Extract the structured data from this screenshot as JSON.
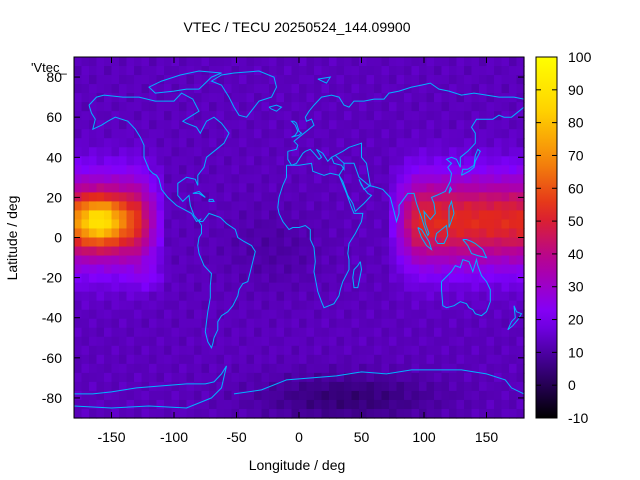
{
  "chart_data": {
    "type": "heatmap",
    "title": "VTEC / TECU 20250524_144.09900",
    "xlabel": "Longitude / deg",
    "ylabel": "Latitude / deg",
    "key_label": "'Vtec_",
    "xlim": [
      -180,
      180
    ],
    "ylim": [
      -90,
      90
    ],
    "x_ticks": [
      -150,
      -100,
      -50,
      0,
      50,
      100,
      150
    ],
    "y_ticks": [
      -80,
      -60,
      -40,
      -20,
      0,
      20,
      40,
      60,
      80
    ],
    "colorbar": {
      "range": [
        -10,
        100
      ],
      "ticks": [
        -10,
        0,
        10,
        20,
        30,
        40,
        50,
        60,
        70,
        80,
        90,
        100
      ],
      "palette": [
        "#000000",
        "#3a0082",
        "#8000ff",
        "#b2009e",
        "#e2271d",
        "#f5880a",
        "#ffd500",
        "#ffff00"
      ]
    },
    "grid": false,
    "legend": "top-left",
    "features": {
      "background_vtec": 13,
      "pacific_peak": {
        "lon": -160,
        "lat": 8,
        "vtec": 93
      },
      "pacific_band": {
        "lon_range": [
          -180,
          -120
        ],
        "lat_range": [
          -20,
          35
        ],
        "vtec": 55
      },
      "asia_band": {
        "lon_range": [
          85,
          180
        ],
        "lat_range": [
          -20,
          35
        ],
        "vtec": 52
      },
      "south_atlantic_low": {
        "lon": 50,
        "lat": -80,
        "vtec": 2
      },
      "coastline_color": "#00b3ff"
    }
  }
}
